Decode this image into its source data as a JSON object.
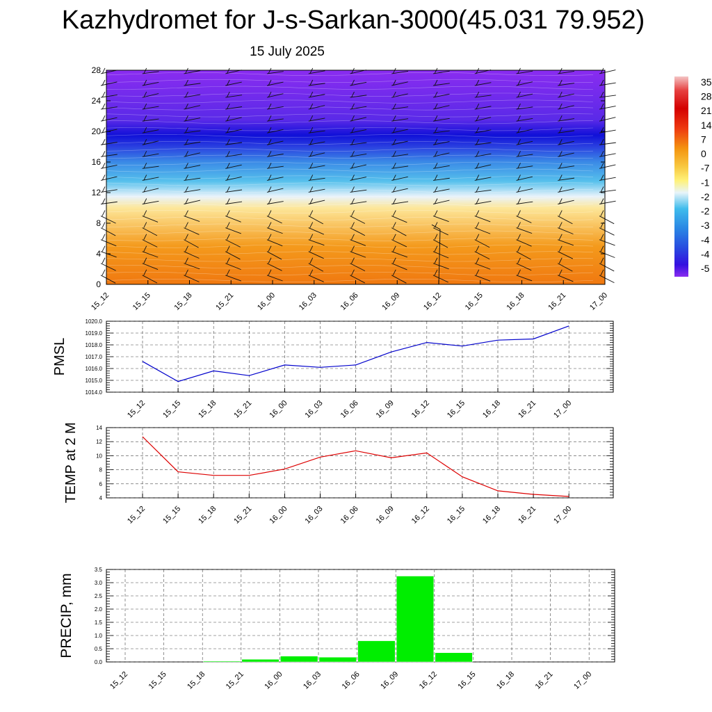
{
  "title": "Kazhydromet for J-s-Sarkan-3000(45.031 79.952)",
  "subtitle": "15 July 2025",
  "time_labels": [
    "15_12",
    "15_15",
    "15_18",
    "15_21",
    "16_00",
    "16_03",
    "16_06",
    "16_09",
    "16_12",
    "16_15",
    "16_18",
    "16_21",
    "17_00"
  ],
  "chart_data": [
    {
      "type": "heatmap",
      "name": "height-time temperature cross-section with wind barbs",
      "x": [
        "15_12",
        "15_15",
        "15_18",
        "15_21",
        "16_00",
        "16_03",
        "16_06",
        "16_09",
        "16_12",
        "16_15",
        "16_18",
        "16_21",
        "17_00"
      ],
      "yticks": [
        0,
        4,
        8,
        12,
        16,
        20,
        24,
        28
      ],
      "ylim": [
        0,
        28
      ],
      "colorbar_labels": [
        "35",
        "28",
        "21",
        "14",
        "7",
        "0",
        "-7",
        "-1",
        "-2",
        "-2",
        "-3",
        "-4",
        "-4",
        "-5"
      ],
      "color_stops": [
        {
          "level": 0,
          "color": "#f07810"
        },
        {
          "level": 5,
          "color": "#f49a1c"
        },
        {
          "level": 10,
          "color": "#fde79a"
        },
        {
          "level": 11.5,
          "color": "#e9f3fb"
        },
        {
          "level": 13.5,
          "color": "#56c0ec"
        },
        {
          "level": 16,
          "color": "#3a8ae6"
        },
        {
          "level": 18,
          "color": "#2a40e0"
        },
        {
          "level": 19.5,
          "color": "#1010d8"
        },
        {
          "level": 21.5,
          "color": "#5a2ae8"
        },
        {
          "level": 28,
          "color": "#8a2cf0"
        }
      ]
    },
    {
      "type": "line",
      "ylabel": "PMSL",
      "x": [
        "15_12",
        "15_15",
        "15_18",
        "15_21",
        "16_00",
        "16_03",
        "16_06",
        "16_09",
        "16_12",
        "16_15",
        "16_18",
        "16_21",
        "17_00"
      ],
      "values": [
        1016.6,
        1014.9,
        1015.8,
        1015.4,
        1016.3,
        1016.1,
        1016.3,
        1017.4,
        1018.2,
        1017.9,
        1018.4,
        1018.5,
        1019.6
      ],
      "ylim": [
        1014.0,
        1020.0
      ],
      "yticks": [
        "1014.0",
        "1015.0",
        "1016.0",
        "1017.0",
        "1018.0",
        "1019.0",
        "1020.0"
      ],
      "color": "#0000cc",
      "grid": true
    },
    {
      "type": "line",
      "ylabel": "TEMP at 2 M",
      "x": [
        "15_12",
        "15_15",
        "15_18",
        "15_21",
        "16_00",
        "16_03",
        "16_06",
        "16_09",
        "16_12",
        "16_15",
        "16_18",
        "16_21",
        "17_00"
      ],
      "values": [
        12.7,
        7.7,
        7.2,
        7.2,
        8.1,
        9.8,
        10.7,
        9.7,
        10.4,
        7.0,
        5.0,
        4.5,
        4.2
      ],
      "ylim": [
        4,
        14
      ],
      "yticks": [
        "4",
        "6",
        "8",
        "10",
        "12",
        "14"
      ],
      "color": "#dd0000",
      "grid": true
    },
    {
      "type": "bar",
      "ylabel": "PRECIP, mm",
      "categories": [
        "15_12",
        "15_15",
        "15_18",
        "15_21",
        "16_00",
        "16_03",
        "16_06",
        "16_09",
        "16_12",
        "16_15",
        "16_18",
        "16_21",
        "17_00"
      ],
      "values": [
        0,
        0,
        0.03,
        0.1,
        0.22,
        0.18,
        0.8,
        3.25,
        0.35,
        0,
        0,
        0,
        0
      ],
      "ylim": [
        0,
        3.5
      ],
      "yticks": [
        "0.0",
        "0.5",
        "1.0",
        "1.5",
        "2.0",
        "2.5",
        "3.0",
        "3.5"
      ],
      "color": "#00ee00",
      "grid": true
    }
  ]
}
